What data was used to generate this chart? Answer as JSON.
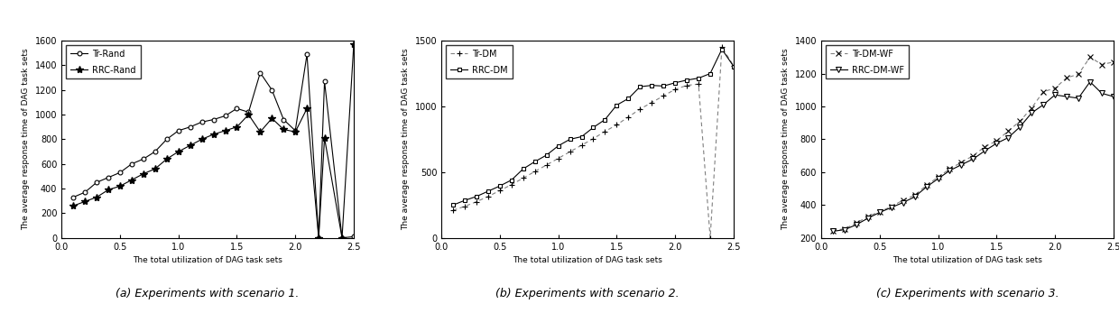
{
  "chart1": {
    "title": "(a) Experiments with scenario 1.",
    "xlabel": "The total utilization of DAG task sets",
    "ylabel": "The average response time of DAG task sets",
    "ylim": [
      0,
      1600
    ],
    "xlim": [
      0,
      2.5
    ],
    "yticks": [
      0,
      200,
      400,
      600,
      800,
      1000,
      1200,
      1400,
      1600
    ],
    "xticks": [
      0,
      0.5,
      1,
      1.5,
      2,
      2.5
    ],
    "line1_label": "Tr-Rand",
    "line2_label": "RRC-Rand",
    "line1_x": [
      0.1,
      0.2,
      0.3,
      0.4,
      0.5,
      0.6,
      0.7,
      0.8,
      0.9,
      1.0,
      1.1,
      1.2,
      1.3,
      1.4,
      1.5,
      1.6,
      1.7,
      1.8,
      1.9,
      2.0,
      2.1,
      2.2,
      2.25,
      2.4,
      2.5
    ],
    "line1_y": [
      330,
      370,
      450,
      490,
      530,
      600,
      640,
      700,
      800,
      870,
      900,
      940,
      960,
      990,
      1050,
      1020,
      1340,
      1200,
      960,
      870,
      1490,
      0,
      1270,
      0,
      10
    ],
    "line2_x": [
      0.1,
      0.2,
      0.3,
      0.4,
      0.5,
      0.6,
      0.7,
      0.8,
      0.9,
      1.0,
      1.1,
      1.2,
      1.3,
      1.4,
      1.5,
      1.6,
      1.7,
      1.8,
      1.9,
      2.0,
      2.1,
      2.2,
      2.25,
      2.4,
      2.5
    ],
    "line2_y": [
      260,
      295,
      330,
      390,
      420,
      470,
      520,
      560,
      640,
      700,
      750,
      800,
      840,
      870,
      900,
      1000,
      860,
      970,
      880,
      860,
      1050,
      0,
      810,
      0,
      1570
    ]
  },
  "chart2": {
    "title": "(b) Experiments with scenario 2.",
    "xlabel": "The total utilization of DAG task sets",
    "ylabel": "The average response time of DAG task sets",
    "ylim": [
      0,
      1500
    ],
    "xlim": [
      0,
      2.5
    ],
    "yticks": [
      0,
      500,
      1000,
      1500
    ],
    "xticks": [
      0,
      0.5,
      1,
      1.5,
      2,
      2.5
    ],
    "line1_label": "Tr-DM",
    "line2_label": "RRC-DM",
    "line1_x": [
      0.1,
      0.2,
      0.3,
      0.4,
      0.5,
      0.6,
      0.7,
      0.8,
      0.9,
      1.0,
      1.1,
      1.2,
      1.3,
      1.4,
      1.5,
      1.6,
      1.7,
      1.8,
      1.9,
      2.0,
      2.1,
      2.2,
      2.3,
      2.4,
      2.5
    ],
    "line1_y": [
      210,
      240,
      275,
      315,
      360,
      405,
      455,
      505,
      555,
      605,
      655,
      705,
      755,
      810,
      860,
      920,
      980,
      1030,
      1080,
      1130,
      1160,
      1170,
      0,
      1450,
      1310
    ],
    "line2_x": [
      0.1,
      0.2,
      0.3,
      0.4,
      0.5,
      0.6,
      0.7,
      0.8,
      0.9,
      1.0,
      1.1,
      1.2,
      1.3,
      1.4,
      1.5,
      1.6,
      1.7,
      1.8,
      1.9,
      2.0,
      2.1,
      2.2,
      2.3,
      2.4,
      2.5
    ],
    "line2_y": [
      250,
      285,
      315,
      355,
      395,
      440,
      525,
      580,
      630,
      700,
      750,
      770,
      840,
      900,
      1010,
      1060,
      1150,
      1160,
      1155,
      1180,
      1200,
      1215,
      1250,
      1435,
      1305
    ]
  },
  "chart3": {
    "title": "(c) Experiments with scenario 3.",
    "xlabel": "The total utilization of DAG task sets",
    "ylabel": "The average response time of DAG task sets",
    "ylim": [
      200,
      1400
    ],
    "xlim": [
      0,
      2.5
    ],
    "yticks": [
      200,
      400,
      600,
      800,
      1000,
      1200,
      1400
    ],
    "xticks": [
      0,
      0.5,
      1,
      1.5,
      2,
      2.5
    ],
    "line1_label": "Tr-DM-WF",
    "line2_label": "RRC-DM-WF",
    "line1_x": [
      0.1,
      0.2,
      0.3,
      0.4,
      0.5,
      0.6,
      0.7,
      0.8,
      0.9,
      1.0,
      1.1,
      1.2,
      1.3,
      1.4,
      1.5,
      1.6,
      1.7,
      1.8,
      1.9,
      2.0,
      2.1,
      2.2,
      2.3,
      2.4,
      2.5
    ],
    "line1_y": [
      245,
      255,
      290,
      330,
      360,
      390,
      430,
      460,
      520,
      570,
      620,
      660,
      700,
      755,
      790,
      850,
      910,
      990,
      1090,
      1110,
      1175,
      1195,
      1300,
      1255,
      1270
    ],
    "line2_x": [
      0.1,
      0.2,
      0.3,
      0.4,
      0.5,
      0.6,
      0.7,
      0.8,
      0.9,
      1.0,
      1.1,
      1.2,
      1.3,
      1.4,
      1.5,
      1.6,
      1.7,
      1.8,
      1.9,
      2.0,
      2.1,
      2.2,
      2.3,
      2.4,
      2.5
    ],
    "line2_y": [
      240,
      250,
      280,
      320,
      355,
      385,
      415,
      450,
      510,
      560,
      610,
      645,
      680,
      730,
      775,
      810,
      875,
      960,
      1010,
      1070,
      1060,
      1050,
      1150,
      1080,
      1060
    ]
  },
  "background_color": "#ffffff",
  "line_color": "#000000",
  "fontsize_label": 6.5,
  "fontsize_tick": 7,
  "fontsize_caption": 9
}
